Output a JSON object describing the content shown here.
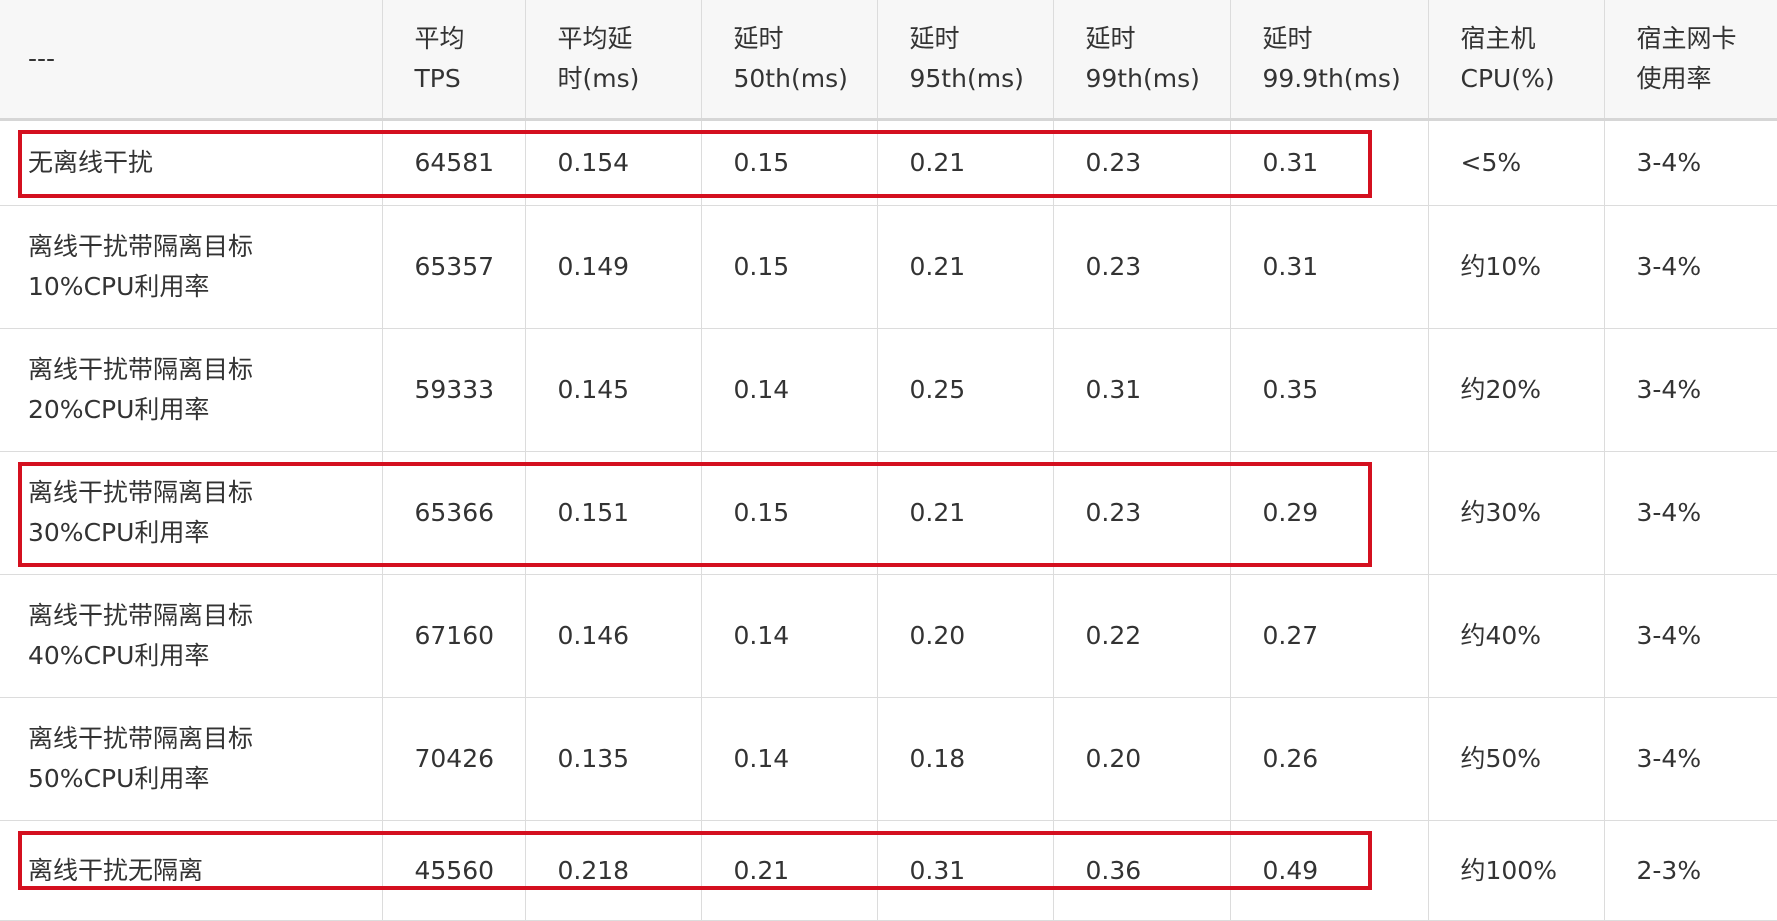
{
  "table": {
    "headers": [
      [
        "---"
      ],
      [
        "平均",
        "TPS"
      ],
      [
        "平均延",
        "时(ms)"
      ],
      [
        "延时",
        "50th(ms)"
      ],
      [
        "延时",
        "95th(ms)"
      ],
      [
        "延时",
        "99th(ms)"
      ],
      [
        "延时",
        "99.9th(ms)"
      ],
      [
        "宿主机",
        "CPU(%)"
      ],
      [
        "宿主网卡",
        "使用率"
      ]
    ],
    "rows": [
      {
        "label": [
          "无离线干扰"
        ],
        "cells": [
          "64581",
          "0.154",
          "0.15",
          "0.21",
          "0.23",
          "0.31",
          "<5%",
          "3-4%"
        ],
        "highlighted": true
      },
      {
        "label": [
          "离线干扰带隔离目标",
          "10%CPU利用率"
        ],
        "cells": [
          "65357",
          "0.149",
          "0.15",
          "0.21",
          "0.23",
          "0.31",
          "约10%",
          "3-4%"
        ],
        "highlighted": false
      },
      {
        "label": [
          "离线干扰带隔离目标",
          "20%CPU利用率"
        ],
        "cells": [
          "59333",
          "0.145",
          "0.14",
          "0.25",
          "0.31",
          "0.35",
          "约20%",
          "3-4%"
        ],
        "highlighted": false
      },
      {
        "label": [
          "离线干扰带隔离目标",
          "30%CPU利用率"
        ],
        "cells": [
          "65366",
          "0.151",
          "0.15",
          "0.21",
          "0.23",
          "0.29",
          "约30%",
          "3-4%"
        ],
        "highlighted": true
      },
      {
        "label": [
          "离线干扰带隔离目标",
          "40%CPU利用率"
        ],
        "cells": [
          "67160",
          "0.146",
          "0.14",
          "0.20",
          "0.22",
          "0.27",
          "约40%",
          "3-4%"
        ],
        "highlighted": false
      },
      {
        "label": [
          "离线干扰带隔离目标",
          "50%CPU利用率"
        ],
        "cells": [
          "70426",
          "0.135",
          "0.14",
          "0.18",
          "0.20",
          "0.26",
          "约50%",
          "3-4%"
        ],
        "highlighted": false
      },
      {
        "label": [
          "离线干扰无隔离"
        ],
        "cells": [
          "45560",
          "0.218",
          "0.21",
          "0.31",
          "0.36",
          "0.49",
          "约100%",
          "2-3%"
        ],
        "highlighted": true
      }
    ],
    "highlight_color": "#d4101f"
  }
}
